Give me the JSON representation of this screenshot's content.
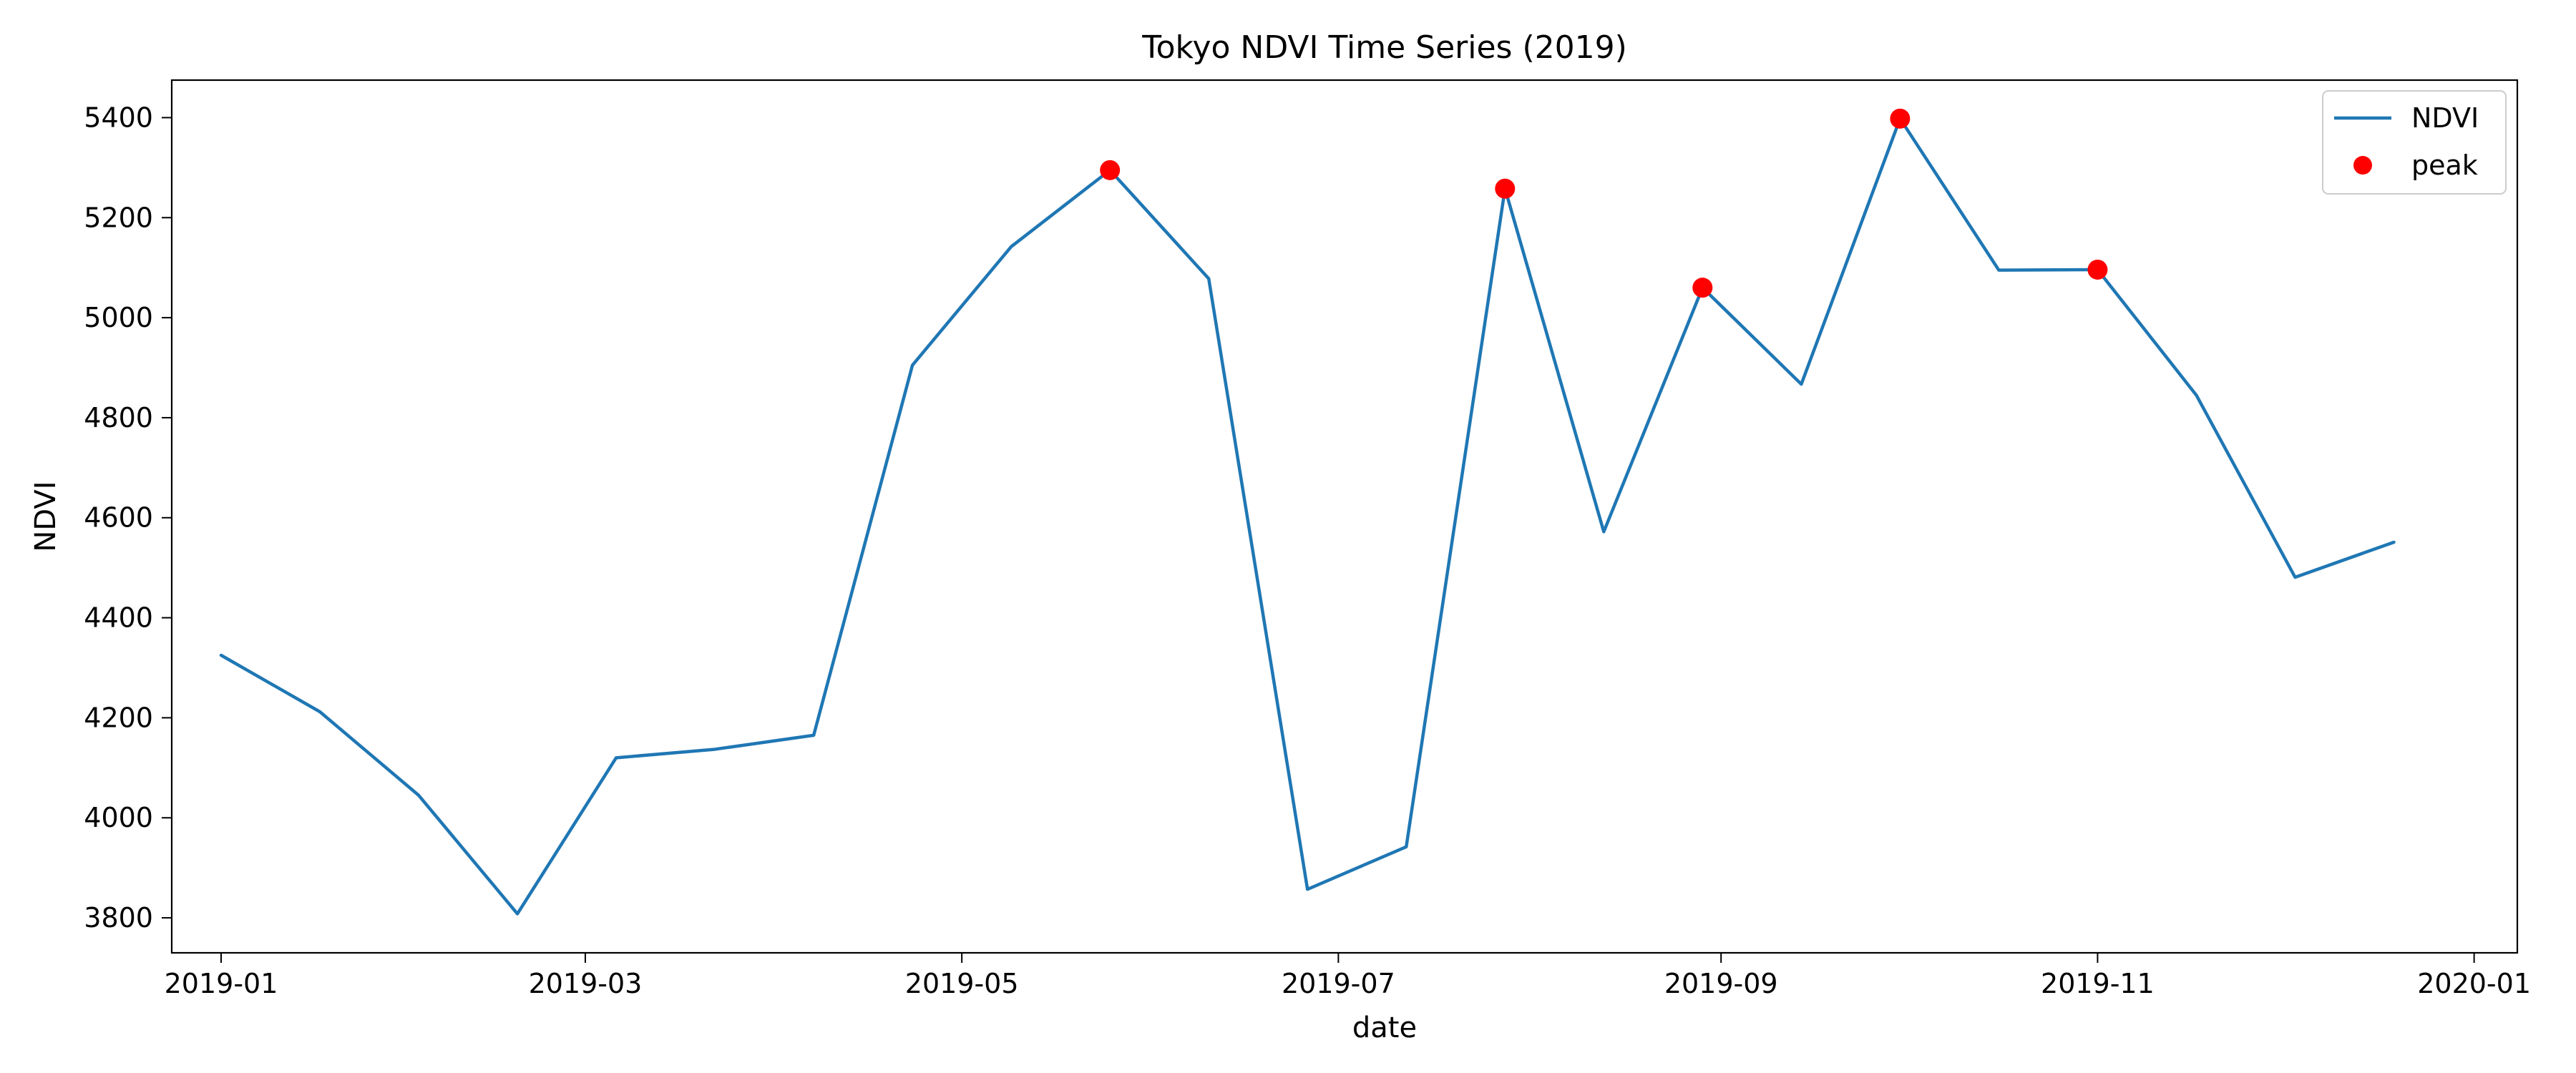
{
  "chart_data": {
    "type": "line",
    "title": "Tokyo NDVI Time Series (2019)",
    "xlabel": "date",
    "ylabel": "NDVI",
    "xlim": [
      "2018-12-24",
      "2020-01-08"
    ],
    "ylim": [
      3730,
      5475
    ],
    "x_ticks": [
      "2019-01",
      "2019-03",
      "2019-05",
      "2019-07",
      "2019-09",
      "2019-11",
      "2020-01"
    ],
    "y_ticks": [
      3800,
      4000,
      4200,
      4400,
      4600,
      4800,
      5000,
      5200,
      5400
    ],
    "grid": false,
    "legend_position": "top-right",
    "series": [
      {
        "name": "NDVI",
        "kind": "line",
        "color": "#1f77b4",
        "x": [
          "2019-01-01",
          "2019-01-17",
          "2019-02-02",
          "2019-02-18",
          "2019-03-06",
          "2019-03-22",
          "2019-04-07",
          "2019-04-23",
          "2019-05-09",
          "2019-05-25",
          "2019-06-10",
          "2019-06-26",
          "2019-07-12",
          "2019-07-28",
          "2019-08-13",
          "2019-08-29",
          "2019-09-14",
          "2019-09-30",
          "2019-10-16",
          "2019-11-01",
          "2019-11-17",
          "2019-12-03",
          "2019-12-19"
        ],
        "y": [
          4325,
          4212,
          4045,
          3808,
          4120,
          4137,
          4165,
          4905,
          5142,
          5295,
          5078,
          3857,
          3942,
          5258,
          4572,
          5060,
          4867,
          5398,
          5095,
          5096,
          4845,
          4481,
          4551
        ]
      },
      {
        "name": "peak",
        "kind": "scatter",
        "color": "#ff0000",
        "x": [
          "2019-05-25",
          "2019-07-28",
          "2019-08-29",
          "2019-09-30",
          "2019-11-01"
        ],
        "y": [
          5295,
          5258,
          5060,
          5398,
          5096
        ]
      }
    ]
  }
}
